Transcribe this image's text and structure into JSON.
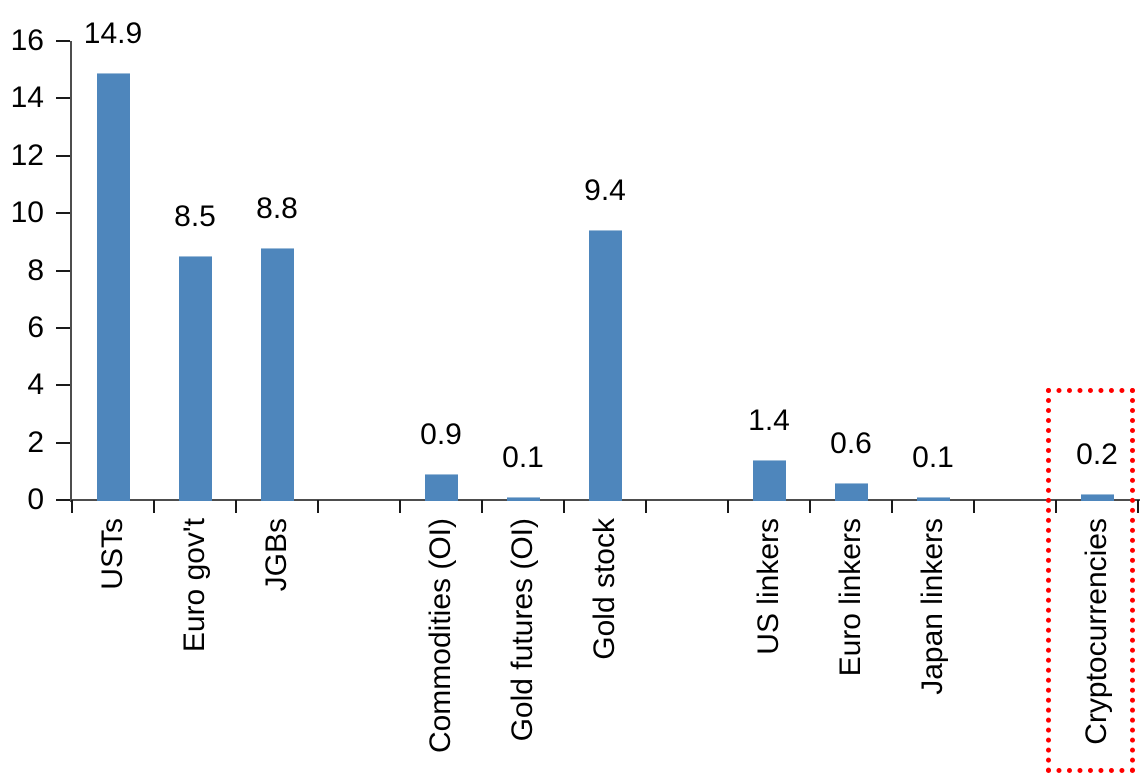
{
  "chart_data": {
    "type": "bar",
    "title": "",
    "xlabel": "",
    "ylabel": "",
    "categories": [
      "USTs",
      "Euro gov't",
      "JGBs",
      "Commodities (OI)",
      "Gold futures (OI)",
      "Gold stock",
      "US linkers",
      "Euro linkers",
      "Japan linkers",
      "Cryptocurrencies"
    ],
    "values": [
      14.9,
      8.5,
      8.8,
      0.9,
      0.1,
      9.4,
      1.4,
      0.6,
      0.1,
      0.2
    ],
    "data_labels": [
      "14.9",
      "8.5",
      "8.8",
      "0.9",
      "0.1",
      "9.4",
      "1.4",
      "0.6",
      "0.1",
      "0.2"
    ],
    "slot_indices": [
      0,
      1,
      2,
      4,
      5,
      6,
      8,
      9,
      10,
      12
    ],
    "total_slots": 13,
    "ylim": [
      0,
      16
    ],
    "yticks": [
      0,
      2,
      4,
      6,
      8,
      10,
      12,
      14,
      16
    ],
    "ytick_labels": [
      "0",
      "2",
      "4",
      "6",
      "8",
      "10",
      "12",
      "14",
      "16"
    ],
    "grid": false,
    "legend": false,
    "bar_color": "#4E86BC",
    "axis_color": "#4d4d4d",
    "text_color": "#000000",
    "highlight": {
      "category": "Cryptocurrencies",
      "style": "red-dotted-rectangle",
      "color": "#FF0000"
    }
  }
}
